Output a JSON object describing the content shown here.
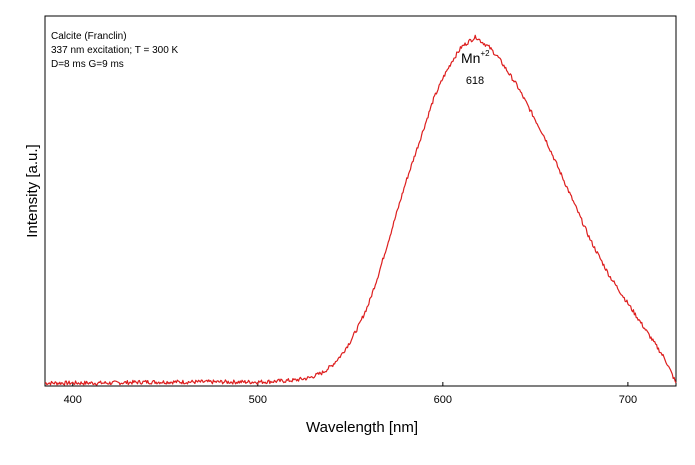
{
  "chart_data": {
    "type": "line",
    "title": "",
    "xlabel": "Wavelength [nm]",
    "ylabel": "Intensity [a.u.]",
    "xlim": [
      385,
      726
    ],
    "ylim": [
      0,
      1.06
    ],
    "x_ticks": [
      400,
      500,
      600,
      700
    ],
    "y_ticks": [],
    "grid": false,
    "legend": "none",
    "info_lines": [
      "Calcite (Franclin)",
      "337 nm excitation; T = 300 K",
      "D=8 ms G=9 ms"
    ],
    "annotations": {
      "species": "Mn",
      "species_superscript": "+2",
      "peak_label": "618",
      "peak_x": 618
    },
    "series": [
      {
        "color": "#dd1f1f",
        "x": [
          385,
          400,
          420,
          440,
          460,
          480,
          500,
          510,
          520,
          528,
          535,
          540,
          545,
          550,
          555,
          560,
          565,
          570,
          575,
          580,
          585,
          590,
          595,
          600,
          605,
          610,
          615,
          618,
          620,
          625,
          630,
          635,
          640,
          645,
          650,
          655,
          660,
          665,
          670,
          675,
          680,
          685,
          690,
          695,
          700,
          705,
          710,
          715,
          720,
          726
        ],
        "y": [
          0.0,
          0.0,
          0.0,
          0.003,
          0.003,
          0.003,
          0.003,
          0.005,
          0.008,
          0.015,
          0.03,
          0.05,
          0.08,
          0.12,
          0.17,
          0.23,
          0.31,
          0.4,
          0.49,
          0.58,
          0.66,
          0.74,
          0.82,
          0.88,
          0.93,
          0.97,
          0.99,
          1.0,
          0.99,
          0.97,
          0.94,
          0.9,
          0.86,
          0.81,
          0.76,
          0.71,
          0.65,
          0.59,
          0.53,
          0.47,
          0.41,
          0.36,
          0.31,
          0.27,
          0.23,
          0.19,
          0.15,
          0.11,
          0.07,
          0.0
        ]
      }
    ]
  }
}
